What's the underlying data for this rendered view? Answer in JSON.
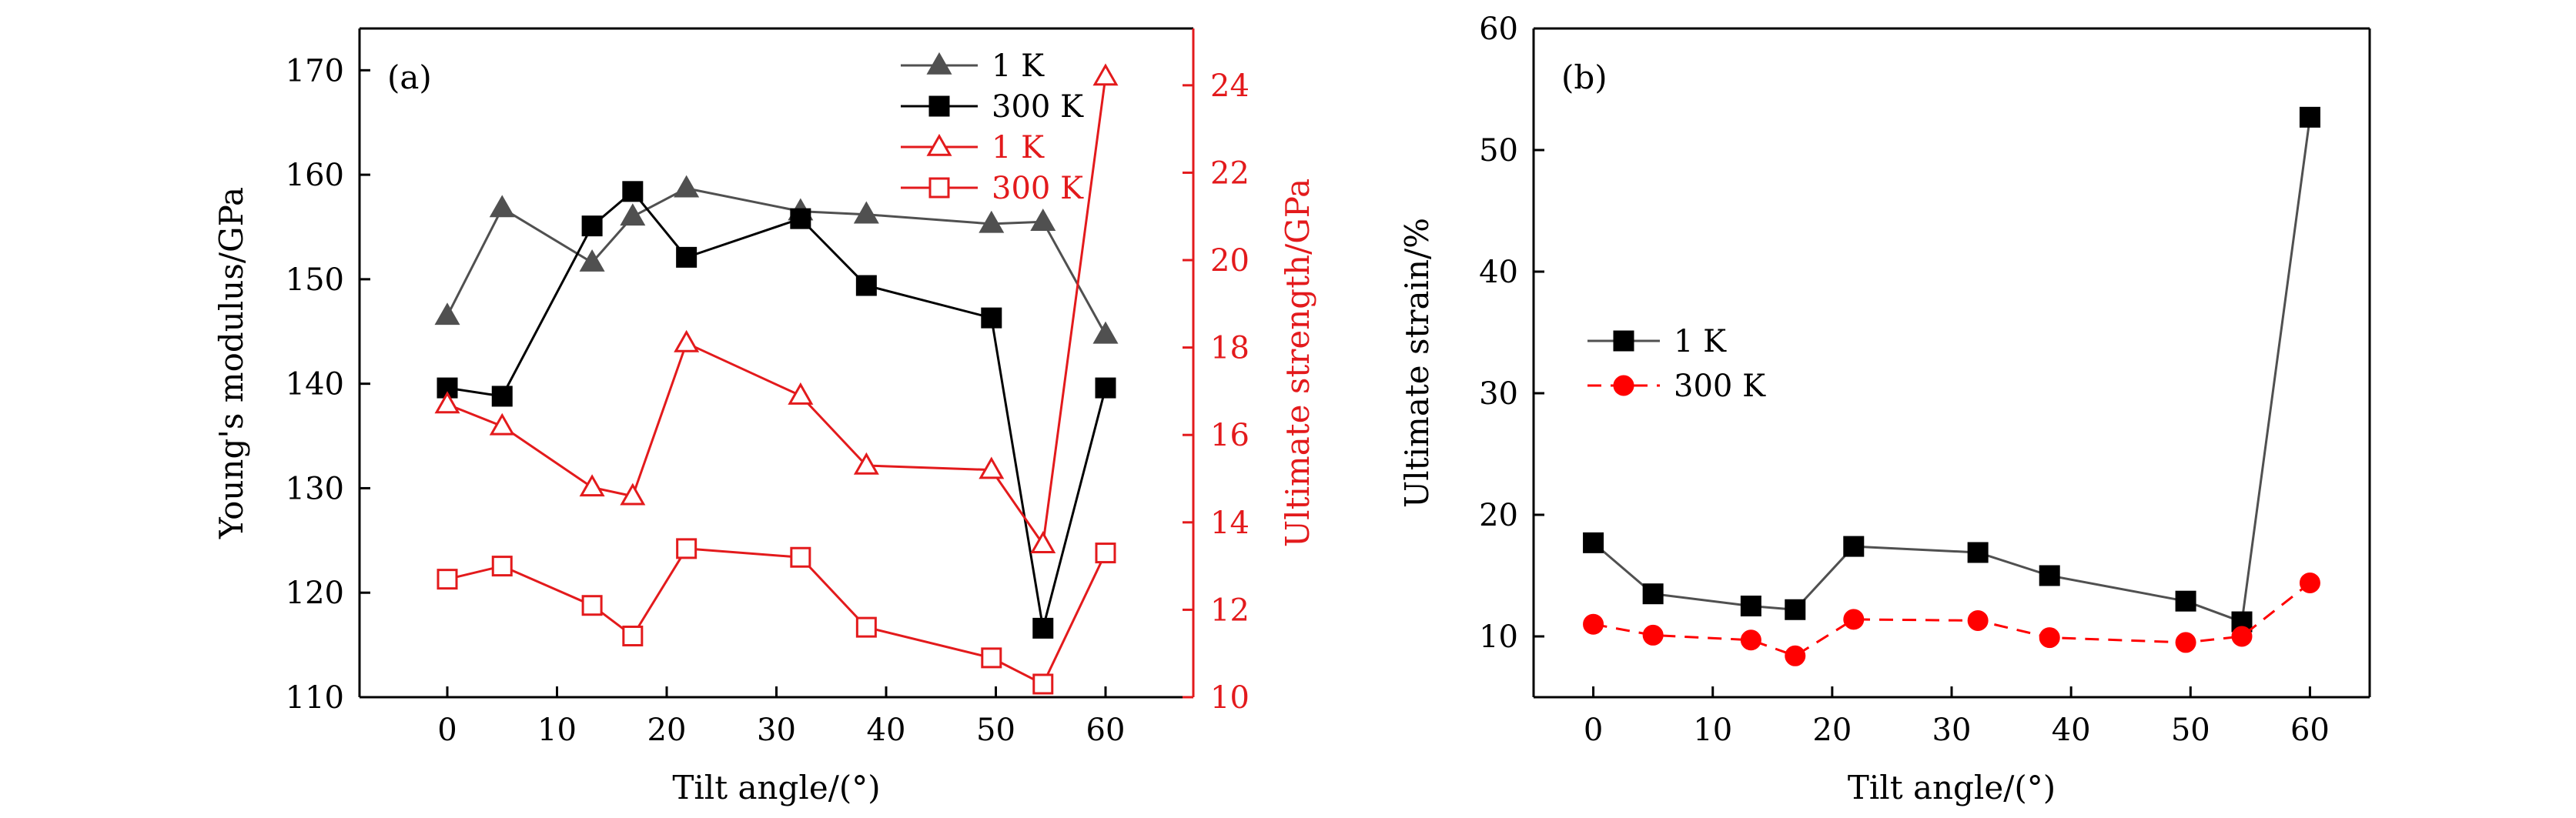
{
  "chart_data": [
    {
      "type": "line",
      "panel_label": "(a)",
      "xlabel": "Tilt angle/(°)",
      "ylabel": "Young's modulus/GPa",
      "y2label": "Ultimate strength/GPa",
      "xlim": [
        -8,
        68
      ],
      "ylim": [
        110,
        174
      ],
      "y2lim": [
        10,
        25.3
      ],
      "x_ticks": [
        0,
        10,
        20,
        30,
        40,
        50,
        60
      ],
      "y_ticks": [
        110,
        120,
        130,
        140,
        150,
        160,
        170
      ],
      "y2_ticks": [
        10,
        12,
        14,
        16,
        18,
        20,
        22,
        24
      ],
      "legend_position": "top-right",
      "colors": {
        "black": "#000000",
        "gray": "#505050",
        "red": "#e31a1c"
      },
      "series": [
        {
          "name": "1 K",
          "axis": "left",
          "marker": "triangle",
          "filled": true,
          "color": "#505050",
          "x": [
            0,
            5,
            13.2,
            16.9,
            21.8,
            32.2,
            38.2,
            49.6,
            54.3,
            60
          ],
          "y": [
            146.5,
            156.8,
            151.6,
            156.0,
            158.7,
            156.5,
            156.2,
            155.3,
            155.5,
            144.7
          ]
        },
        {
          "name": "300 K",
          "axis": "left",
          "marker": "square",
          "filled": true,
          "color": "#000000",
          "x": [
            0,
            5,
            13.2,
            16.9,
            21.8,
            32.2,
            38.2,
            49.6,
            54.3,
            60
          ],
          "y": [
            139.6,
            138.8,
            155.1,
            158.4,
            152.1,
            155.8,
            149.4,
            146.3,
            116.6,
            139.6
          ]
        },
        {
          "name": "1 K",
          "axis": "right",
          "marker": "triangle",
          "filled": false,
          "color": "#e31a1c",
          "x": [
            0,
            5,
            13.2,
            16.9,
            21.8,
            32.2,
            38.2,
            49.6,
            54.3,
            60
          ],
          "y": [
            16.7,
            16.2,
            14.8,
            14.6,
            18.1,
            16.9,
            15.3,
            15.2,
            13.5,
            24.2
          ]
        },
        {
          "name": "300 K",
          "axis": "right",
          "marker": "square",
          "filled": false,
          "color": "#e31a1c",
          "x": [
            0,
            5,
            13.2,
            16.9,
            21.8,
            32.2,
            38.2,
            49.6,
            54.3,
            60
          ],
          "y": [
            12.7,
            13.0,
            12.1,
            11.4,
            13.4,
            13.2,
            11.6,
            10.9,
            10.3,
            13.3
          ]
        }
      ]
    },
    {
      "type": "line",
      "panel_label": "(b)",
      "xlabel": "Tilt angle/(°)",
      "ylabel": "Ultimate strain/%",
      "xlim": [
        -5,
        65
      ],
      "ylim": [
        5,
        60
      ],
      "x_ticks": [
        0,
        10,
        20,
        30,
        40,
        50,
        60
      ],
      "y_ticks": [
        10,
        20,
        30,
        40,
        50,
        60
      ],
      "legend_position": "center-left",
      "colors": {
        "black": "#000000",
        "gray": "#505050",
        "red": "#ff0000"
      },
      "series": [
        {
          "name": "1 K",
          "marker": "square",
          "filled": true,
          "dashed": false,
          "color": "#000000",
          "line_color": "#505050",
          "x": [
            0,
            5,
            13.2,
            16.9,
            21.8,
            32.2,
            38.2,
            49.6,
            54.3,
            60
          ],
          "y": [
            17.7,
            13.5,
            12.5,
            12.2,
            17.4,
            16.9,
            15.0,
            12.9,
            11.2,
            52.7
          ]
        },
        {
          "name": "300 K",
          "marker": "circle",
          "filled": true,
          "dashed": true,
          "color": "#ff0000",
          "line_color": "#ff0000",
          "x": [
            0,
            5,
            13.2,
            16.9,
            21.8,
            32.2,
            38.2,
            49.6,
            54.3,
            60
          ],
          "y": [
            11.0,
            10.1,
            9.7,
            8.4,
            11.4,
            11.3,
            9.9,
            9.5,
            10.0,
            14.4
          ]
        }
      ]
    }
  ]
}
